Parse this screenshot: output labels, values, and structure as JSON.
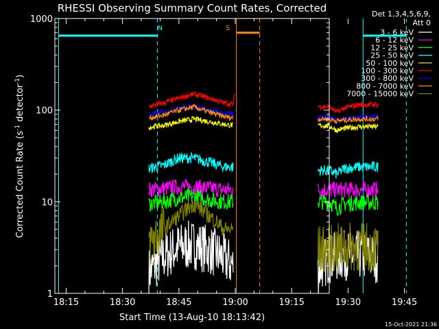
{
  "chart_data": {
    "type": "line",
    "title": "RHESSI Observing Summary Count Rates, Corrected",
    "xlabel": "Start Time (13-Aug-10 18:13:42)",
    "ylabel": "Corrected Count Rate (s⁻¹ detector⁻¹)",
    "ylabel_parts": [
      "Corrected Count Rate (s",
      "-1",
      " detector",
      "-1",
      ")"
    ],
    "yscale": "log",
    "ylim": [
      1,
      1000
    ],
    "xlim_minutes_after_1813": [
      -1,
      72
    ],
    "x_ticks": [
      {
        "label": "18:15",
        "t": 2
      },
      {
        "label": "18:30",
        "t": 17
      },
      {
        "label": "18:45",
        "t": 32
      },
      {
        "label": "19:00",
        "t": 47
      },
      {
        "label": "19:15",
        "t": 62
      },
      {
        "label": "19:30",
        "t": 77
      },
      {
        "label": "19:45",
        "t": 92
      }
    ],
    "y_ticks": [
      {
        "label": "1000",
        "v": 1000
      },
      {
        "label": "100",
        "v": 100
      },
      {
        "label": "10",
        "v": 10
      },
      {
        "label": "1",
        "v": 1
      }
    ],
    "legend_header": [
      "Det 1,3,4,5,6,9,",
      "Att 0"
    ],
    "legend_position": "right",
    "grid": false,
    "series": [
      {
        "name": "3 - 6 keV",
        "color": "#ffffff",
        "points": [
          [
            24,
            1.7
          ],
          [
            28,
            2.5
          ],
          [
            32,
            3.2
          ],
          [
            36,
            3.4
          ],
          [
            40,
            3.0
          ],
          [
            44,
            2.4
          ],
          [
            46.5,
            2.0
          ]
        ],
        "points2": [
          [
            69,
            1.8
          ],
          [
            72,
            2.4
          ],
          [
            76,
            2.6
          ],
          [
            80,
            2.6
          ],
          [
            83,
            2.5
          ],
          [
            85,
            2.4
          ]
        ]
      },
      {
        "name": "6 - 12 keV",
        "color": "#ff00ff",
        "points": [
          [
            24,
            13.5
          ],
          [
            28,
            14
          ],
          [
            32,
            14.5
          ],
          [
            36,
            14.5
          ],
          [
            40,
            14
          ],
          [
            44,
            13.5
          ],
          [
            46.5,
            13.5
          ]
        ],
        "points2": [
          [
            69,
            13.5
          ],
          [
            72,
            13.5
          ],
          [
            76,
            13.5
          ],
          [
            80,
            13.5
          ],
          [
            83,
            13.5
          ],
          [
            85,
            13.5
          ]
        ]
      },
      {
        "name": "12 - 25 keV",
        "color": "#00ff00",
        "points": [
          [
            24,
            9.5
          ],
          [
            28,
            10
          ],
          [
            32,
            11
          ],
          [
            36,
            11.5
          ],
          [
            40,
            10.5
          ],
          [
            44,
            10
          ],
          [
            46.5,
            10
          ]
        ],
        "points2": [
          [
            69,
            10
          ],
          [
            72,
            10
          ],
          [
            74,
            8.5
          ],
          [
            76,
            9.5
          ],
          [
            80,
            9.8
          ],
          [
            83,
            9.8
          ],
          [
            85,
            9.8
          ]
        ]
      },
      {
        "name": "25 - 50 keV",
        "color": "#00ffff",
        "points": [
          [
            24,
            23
          ],
          [
            28,
            25
          ],
          [
            32,
            30
          ],
          [
            36,
            30
          ],
          [
            40,
            27
          ],
          [
            44,
            24
          ],
          [
            46.5,
            24
          ]
        ],
        "points2": [
          [
            69,
            22
          ],
          [
            72,
            22
          ],
          [
            74,
            20
          ],
          [
            76,
            23
          ],
          [
            80,
            24
          ],
          [
            83,
            24
          ],
          [
            85,
            24
          ]
        ]
      },
      {
        "name": "50 - 100 keV",
        "color": "#ffff00",
        "points": [
          [
            24,
            65
          ],
          [
            28,
            68
          ],
          [
            32,
            75
          ],
          [
            36,
            80
          ],
          [
            40,
            75
          ],
          [
            44,
            70
          ],
          [
            46.5,
            68
          ]
        ],
        "points2": [
          [
            69,
            68
          ],
          [
            72,
            67
          ],
          [
            74,
            60
          ],
          [
            76,
            63
          ],
          [
            80,
            66
          ],
          [
            83,
            66
          ],
          [
            85,
            66
          ]
        ]
      },
      {
        "name": "100 - 300 keV",
        "color": "#ff0000",
        "points": [
          [
            24,
            110
          ],
          [
            28,
            120
          ],
          [
            32,
            135
          ],
          [
            36,
            150
          ],
          [
            40,
            135
          ],
          [
            44,
            120
          ],
          [
            46.5,
            115
          ],
          [
            47,
            170
          ]
        ],
        "points2": [
          [
            69,
            110
          ],
          [
            72,
            108
          ],
          [
            74,
            95
          ],
          [
            76,
            105
          ],
          [
            80,
            115
          ],
          [
            83,
            115
          ],
          [
            85,
            115
          ]
        ]
      },
      {
        "name": "300 - 800 keV",
        "color": "#0000ff",
        "points": [
          [
            24,
            88
          ],
          [
            28,
            95
          ],
          [
            32,
            105
          ],
          [
            36,
            110
          ],
          [
            40,
            100
          ],
          [
            44,
            92
          ],
          [
            46.5,
            90
          ]
        ],
        "points2": [
          [
            69,
            85
          ],
          [
            72,
            84
          ],
          [
            74,
            78
          ],
          [
            76,
            80
          ],
          [
            80,
            84
          ],
          [
            83,
            85
          ],
          [
            85,
            85
          ]
        ]
      },
      {
        "name": "800 - 7000 keV",
        "color": "#ff8800",
        "points": [
          [
            24,
            82
          ],
          [
            28,
            88
          ],
          [
            32,
            100
          ],
          [
            36,
            108
          ],
          [
            40,
            95
          ],
          [
            44,
            85
          ],
          [
            46.5,
            82
          ]
        ],
        "points2": [
          [
            69,
            80
          ],
          [
            72,
            80
          ],
          [
            74,
            76
          ],
          [
            76,
            78
          ],
          [
            80,
            80
          ],
          [
            83,
            80
          ],
          [
            85,
            80
          ]
        ]
      },
      {
        "name": "7000 - 15000 keV",
        "color": "#808000",
        "points": [
          [
            24,
            3.5
          ],
          [
            28,
            5
          ],
          [
            32,
            7
          ],
          [
            36,
            9.5
          ],
          [
            40,
            7
          ],
          [
            44,
            5
          ],
          [
            46.5,
            5
          ]
        ],
        "points2": [
          [
            69,
            3
          ],
          [
            72,
            3
          ],
          [
            76,
            3.2
          ],
          [
            80,
            3.2
          ],
          [
            83,
            3.2
          ],
          [
            85,
            3.2
          ]
        ]
      }
    ],
    "annotations": [
      {
        "text": "N",
        "t": 27,
        "color": "#00ffff"
      },
      {
        "text": "S",
        "t": 45,
        "color": "#ff8800"
      }
    ],
    "intervals": [
      {
        "kind": "night",
        "color": "#00ffff",
        "start": 0,
        "end": 26.3,
        "level": 650,
        "dashed_end": true
      },
      {
        "kind": "saa",
        "color": "#ff8800",
        "start": 47.3,
        "end": 53.5,
        "level": 700,
        "dashed_end": true
      },
      {
        "kind": "night",
        "color": "#00ffff",
        "start": 81,
        "end": 92.5,
        "level": 650,
        "dashed_end": true
      }
    ]
  },
  "footer": {
    "timestamp": "15-Oct-2021 21:36"
  }
}
